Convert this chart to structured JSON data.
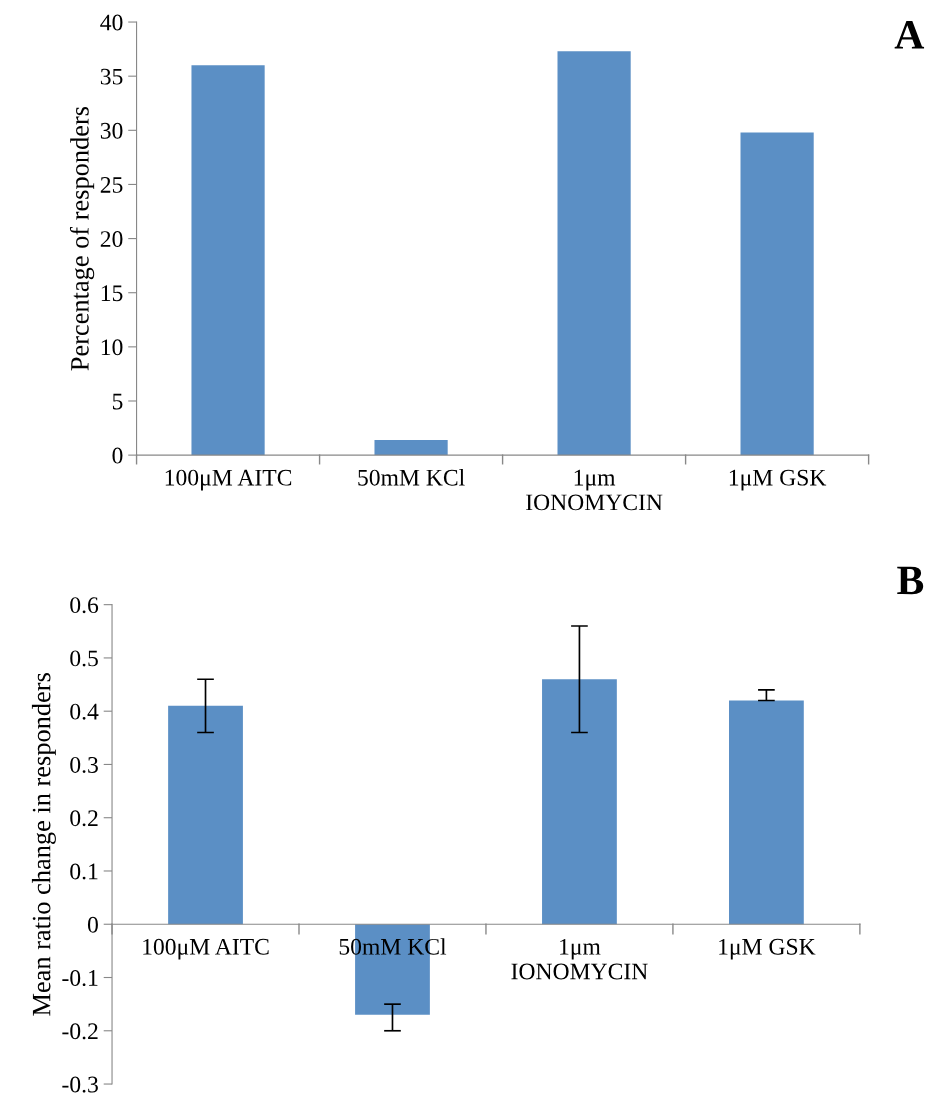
{
  "chart_data": [
    {
      "type": "bar",
      "categories": [
        "100μM AITC",
        "50mM KCl",
        "1μm\nIONOMYCIN",
        "1μM GSK"
      ],
      "values": [
        36,
        1.4,
        37.3,
        29.8
      ],
      "color": "#5b8fc5",
      "ylabel": "Percentage of responders",
      "ylim": [
        0,
        40
      ],
      "yticks": [
        0,
        5,
        10,
        15,
        20,
        25,
        30,
        35,
        40
      ],
      "grid": false,
      "annotations": [
        "A"
      ]
    },
    {
      "type": "bar",
      "categories": [
        "100μM AITC",
        "50mM KCl",
        "1μm\nIONOMYCIN",
        "1μM GSK"
      ],
      "values": [
        0.41,
        -0.17,
        0.46,
        0.42
      ],
      "errors": [
        [
          0.36,
          0.46
        ],
        [
          -0.2,
          -0.15
        ],
        [
          0.36,
          0.56
        ],
        [
          0.42,
          0.44
        ]
      ],
      "color": "#5b8fc5",
      "ylabel": "Mean ratio change in responders",
      "ylim": [
        -0.3,
        0.6
      ],
      "yticks": [
        {
          "value": -0.3,
          "label": "-0.3"
        },
        {
          "value": -0.2,
          "label": "-0.2"
        },
        {
          "value": -0.1,
          "label": "-0.1"
        },
        0,
        0.1,
        0.2,
        0.3,
        0.4,
        0.5,
        0.6
      ],
      "grid": false,
      "annotations": [
        "B"
      ]
    }
  ]
}
